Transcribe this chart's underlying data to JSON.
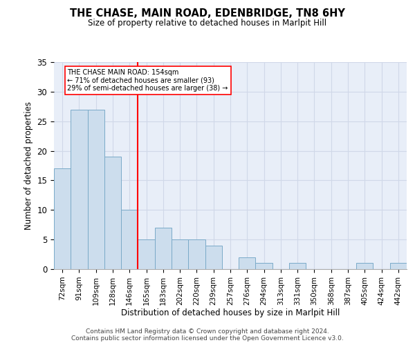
{
  "title": "THE CHASE, MAIN ROAD, EDENBRIDGE, TN8 6HY",
  "subtitle": "Size of property relative to detached houses in Marlpit Hill",
  "xlabel": "Distribution of detached houses by size in Marlpit Hill",
  "ylabel": "Number of detached properties",
  "categories": [
    "72sqm",
    "91sqm",
    "109sqm",
    "128sqm",
    "146sqm",
    "165sqm",
    "183sqm",
    "202sqm",
    "220sqm",
    "239sqm",
    "257sqm",
    "276sqm",
    "294sqm",
    "313sqm",
    "331sqm",
    "350sqm",
    "368sqm",
    "387sqm",
    "405sqm",
    "424sqm",
    "442sqm"
  ],
  "values": [
    17,
    27,
    27,
    19,
    10,
    5,
    7,
    5,
    5,
    4,
    0,
    2,
    1,
    0,
    1,
    0,
    0,
    0,
    1,
    0,
    1
  ],
  "bar_color": "#ccdded",
  "bar_edge_color": "#7aaac8",
  "reference_line_x": 4.5,
  "annotation_lines": [
    "THE CHASE MAIN ROAD: 154sqm",
    "← 71% of detached houses are smaller (93)",
    "29% of semi-detached houses are larger (38) →"
  ],
  "ylim": [
    0,
    35
  ],
  "yticks": [
    0,
    5,
    10,
    15,
    20,
    25,
    30,
    35
  ],
  "grid_color": "#d0d8e8",
  "background_color": "#e8eef8",
  "footer_line1": "Contains HM Land Registry data © Crown copyright and database right 2024.",
  "footer_line2": "Contains public sector information licensed under the Open Government Licence v3.0."
}
